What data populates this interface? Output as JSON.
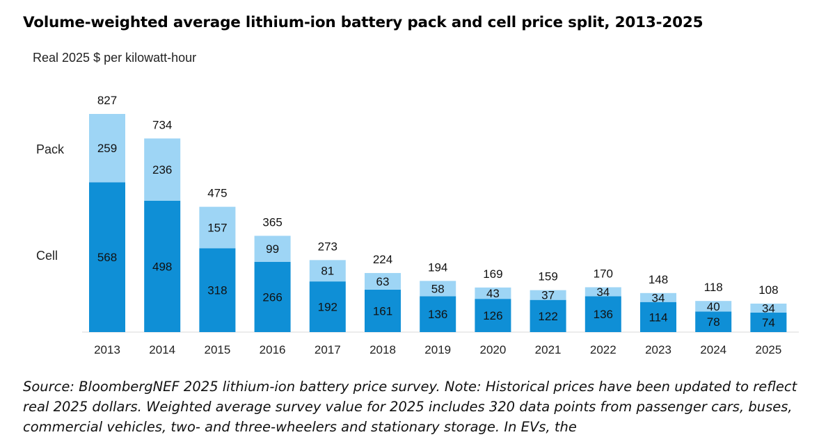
{
  "chart_data": {
    "type": "bar",
    "stacked": true,
    "title": "Volume-weighted average lithium-ion battery pack and cell price split, 2013-2025",
    "ylabel": "Real 2025 $ per kilowatt-hour",
    "xlabel": "",
    "ylim": [
      0,
      827
    ],
    "categories": [
      "2013",
      "2014",
      "2015",
      "2016",
      "2017",
      "2018",
      "2019",
      "2020",
      "2021",
      "2022",
      "2023",
      "2024",
      "2025"
    ],
    "series": [
      {
        "name": "Cell",
        "color": "#0f8fd6",
        "values": [
          568,
          498,
          318,
          266,
          192,
          161,
          136,
          126,
          122,
          136,
          114,
          78,
          74
        ]
      },
      {
        "name": "Pack",
        "color": "#9ed5f5",
        "values": [
          259,
          236,
          157,
          99,
          81,
          63,
          58,
          43,
          37,
          34,
          34,
          40,
          34
        ]
      }
    ],
    "totals": [
      827,
      734,
      475,
      365,
      273,
      224,
      194,
      169,
      159,
      170,
      148,
      118,
      108
    ],
    "series_labels": {
      "pack": "Pack",
      "cell": "Cell"
    }
  },
  "source_note": "Source: BloombergNEF 2025 lithium-ion battery price survey. Note: Historical prices have been updated to reflect real 2025 dollars. Weighted average survey value for 2025 includes 320 data points from passenger cars, buses, commercial vehicles, two- and three-wheelers and stationary storage. In EVs, the"
}
